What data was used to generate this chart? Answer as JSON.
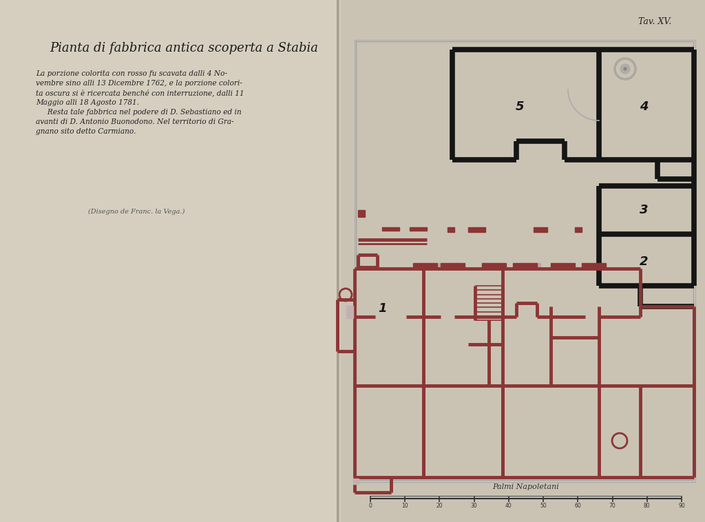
{
  "bg_left": "#d6cfc0",
  "bg_right": "#cac3b4",
  "red": "#8c3535",
  "black": "#151515",
  "title": "Pianta di fabbrica antica scoperta a Stabia",
  "sub1": "La porzione colorita con rosso fu scavata dalli 4 No-",
  "sub2": "vembre sino alli 13 Dicembre 1762, e la porzione colori-",
  "sub3": "ta oscura si è ricercata benché con interruzione, dalli 11",
  "sub4": "Maggio alli 18 Agosto 1781.",
  "sub5": "     Resta tale fabbrica nel podere di D. Sebastiano ed in",
  "sub6": "avanti di D. Antonio Buonodono. Nel territorio di Gra-",
  "sub7": "gnano sito detto Carmiano.",
  "attr": "(Disegno de Franc. la Vega.)",
  "tab": "Tav. XV.",
  "scale_label": "Palmi Napoletani",
  "lw_r": 3.5,
  "lw_b": 5.5,
  "lw_thin": 1.0
}
